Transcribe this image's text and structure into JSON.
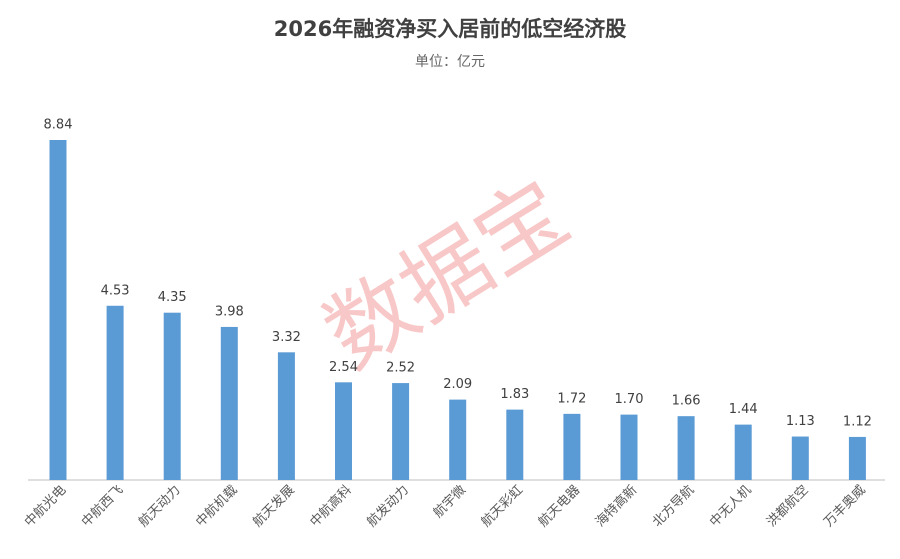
{
  "chart_data": {
    "type": "bar",
    "title": "2026年融资净买入居前的低空经济股",
    "subtitle": "单位：亿元",
    "watermark": "数据宝",
    "categories": [
      "中航光电",
      "中航西飞",
      "航天动力",
      "中航机载",
      "航天发展",
      "中航高科",
      "航发动力",
      "航宇微",
      "航天彩虹",
      "航天电器",
      "海特高新",
      "北方导航",
      "中无人机",
      "洪都航空",
      "万丰奥威"
    ],
    "values": [
      8.84,
      4.53,
      4.35,
      3.98,
      3.32,
      2.54,
      2.52,
      2.09,
      1.83,
      1.72,
      1.7,
      1.66,
      1.44,
      1.13,
      1.12
    ],
    "value_labels": [
      "8.84",
      "4.53",
      "4.35",
      "3.98",
      "3.32",
      "2.54",
      "2.52",
      "2.09",
      "1.83",
      "1.72",
      "1.70",
      "1.66",
      "1.44",
      "1.13",
      "1.12"
    ],
    "color": "#5b9bd5"
  }
}
